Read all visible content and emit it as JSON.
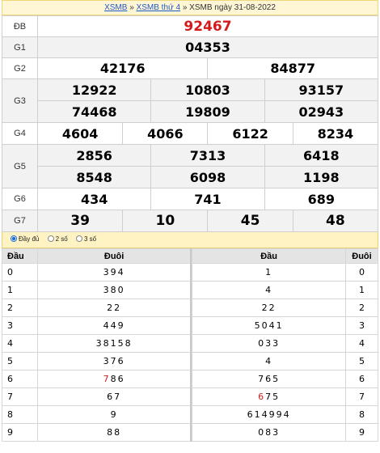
{
  "breadcrumb": {
    "link1": "XSMB",
    "sep1": " » ",
    "link2": "XSMB thứ 4",
    "sep2": " » ",
    "tail": "XSMB ngày 31-08-2022"
  },
  "results": {
    "db": {
      "label": "ĐB",
      "values": [
        "92467"
      ]
    },
    "g1": {
      "label": "G1",
      "values": [
        "04353"
      ]
    },
    "g2": {
      "label": "G2",
      "values": [
        "42176",
        "84877"
      ]
    },
    "g3": {
      "label": "G3",
      "values": [
        "12922",
        "10803",
        "93157",
        "74468",
        "19809",
        "02943"
      ]
    },
    "g4": {
      "label": "G4",
      "values": [
        "4604",
        "4066",
        "6122",
        "8234"
      ]
    },
    "g5": {
      "label": "G5",
      "values": [
        "2856",
        "7313",
        "6418",
        "8548",
        "6098",
        "1198"
      ]
    },
    "g6": {
      "label": "G6",
      "values": [
        "434",
        "741",
        "689"
      ]
    },
    "g7": {
      "label": "G7",
      "values": [
        "39",
        "10",
        "45",
        "48"
      ]
    }
  },
  "options": [
    {
      "label": "Đầy đủ",
      "selected": true
    },
    {
      "label": "2 số",
      "selected": false
    },
    {
      "label": "3 số",
      "selected": false
    }
  ],
  "loto": {
    "headers": {
      "dau": "Đầu",
      "duoi": "Đuôi",
      "dau2": "Đầu",
      "duoi2": "Đuôi"
    },
    "rows": [
      {
        "dau": "0",
        "duoi": "394",
        "dau2": "1",
        "duoi2": "0"
      },
      {
        "dau": "1",
        "duoi": "380",
        "dau2": "4",
        "duoi2": "1"
      },
      {
        "dau": "2",
        "duoi": "22",
        "dau2": "22",
        "duoi2": "2"
      },
      {
        "dau": "3",
        "duoi": "449",
        "dau2": "5041",
        "duoi2": "3"
      },
      {
        "dau": "4",
        "duoi": "38158",
        "dau2": "033",
        "duoi2": "4"
      },
      {
        "dau": "5",
        "duoi": "376",
        "dau2": "4",
        "duoi2": "5"
      },
      {
        "dau": "6",
        "duoi": "786",
        "dau2": "765",
        "duoi2": "6"
      },
      {
        "dau": "7",
        "duoi": "67",
        "dau2": "675",
        "duoi2": "7"
      },
      {
        "dau": "8",
        "duoi": "9",
        "dau2": "614994",
        "duoi2": "8"
      },
      {
        "dau": "9",
        "duoi": "88",
        "dau2": "083",
        "duoi2": "9"
      }
    ]
  },
  "colors": {
    "special": "#d31b1b",
    "link": "#1f58c7",
    "header_bg": "#fff6d5"
  }
}
